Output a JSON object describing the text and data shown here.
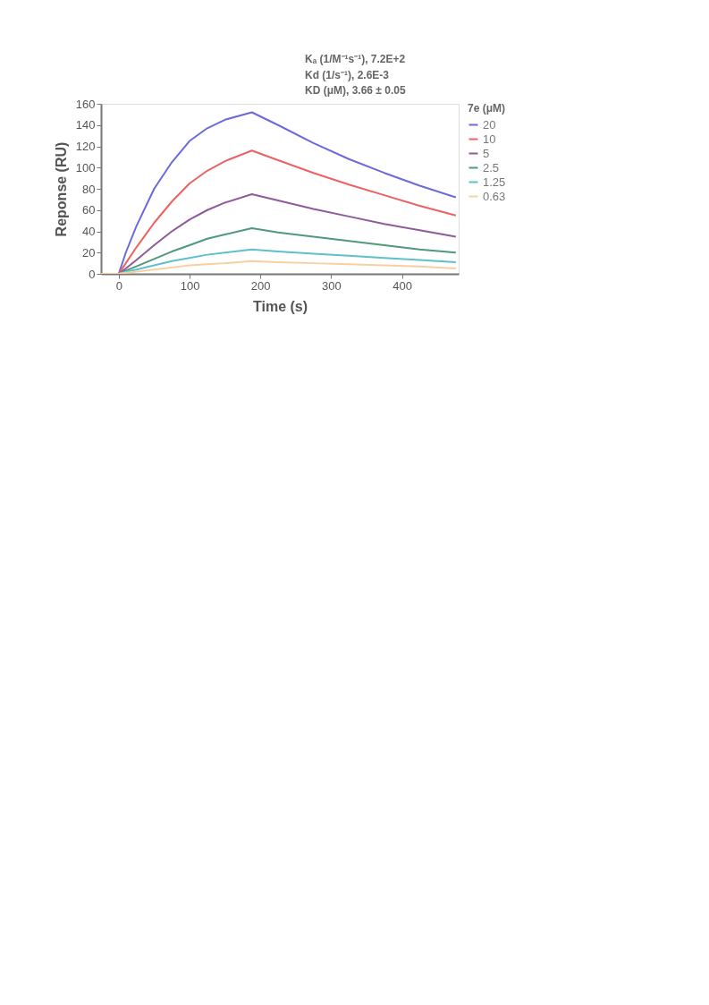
{
  "chart_data": {
    "type": "line",
    "xlabel": "Time (s)",
    "ylabel": "Reponse  (RU)",
    "legend_title": "7e (μM)",
    "annotations": [
      "Kₐ (1/M⁻¹s⁻¹), 7.2E+2",
      "Kd (1/s⁻¹), 2.6E-3",
      "KD (μM), 3.66 ± 0.05"
    ],
    "x": [
      -25,
      0,
      10,
      25,
      50,
      75,
      100,
      125,
      150,
      188,
      225,
      275,
      325,
      375,
      425,
      476
    ],
    "series": [
      {
        "name": "20",
        "color": "#6a6ade",
        "values": [
          0,
          0,
          20,
          45,
          80,
          105,
          125,
          137,
          145,
          152,
          140,
          123,
          108,
          95,
          83,
          72
        ]
      },
      {
        "name": "10",
        "color": "#f06060",
        "values": [
          0,
          0,
          10,
          25,
          48,
          68,
          85,
          97,
          106,
          116,
          107,
          95,
          84,
          74,
          64,
          55
        ]
      },
      {
        "name": "5",
        "color": "#8e5a9a",
        "values": [
          0,
          0,
          5,
          13,
          27,
          40,
          51,
          60,
          67,
          75,
          69,
          61,
          54,
          47,
          41,
          35
        ]
      },
      {
        "name": "2.5",
        "color": "#4e9a7a",
        "values": [
          0,
          0,
          3,
          7,
          14,
          21,
          27,
          33,
          37,
          43,
          39,
          35,
          31,
          27,
          23,
          20
        ]
      },
      {
        "name": "1.25",
        "color": "#5ec0cc",
        "values": [
          0,
          0,
          2,
          4,
          8,
          12,
          15,
          18,
          20,
          23,
          21,
          19,
          17,
          15,
          13,
          11
        ]
      },
      {
        "name": "0.63",
        "color": "#f8cfa0",
        "values": [
          0,
          0,
          1,
          2,
          4,
          6,
          8,
          9,
          10,
          12,
          11,
          10,
          9,
          8,
          7,
          5
        ]
      }
    ],
    "xlim": [
      -25,
      480
    ],
    "xticks": [
      0,
      100,
      200,
      300,
      400
    ],
    "ylim": [
      0,
      160
    ],
    "yticks": [
      0,
      20,
      40,
      60,
      80,
      100,
      120,
      140,
      160
    ],
    "grid": false,
    "legend": "right",
    "marker": "none",
    "line_style": "solid"
  }
}
